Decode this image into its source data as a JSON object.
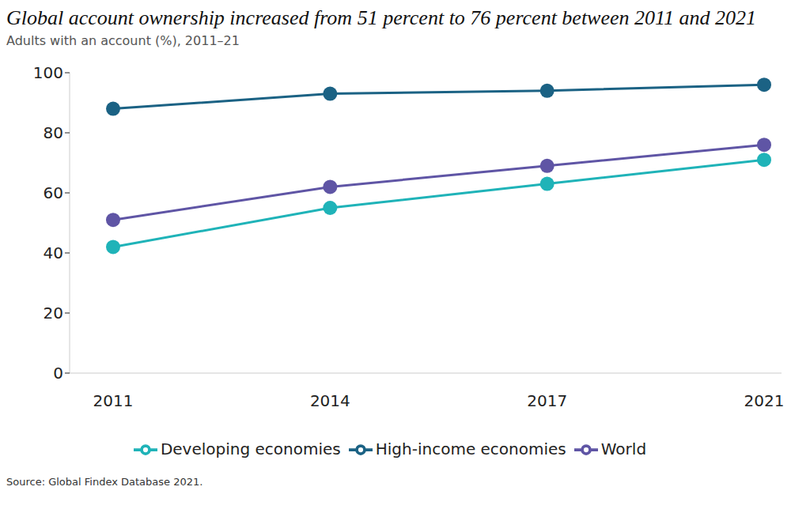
{
  "chart_data": {
    "type": "line",
    "title": "Global account ownership increased from 51 percent to 76 percent between 2011 and 2021",
    "subtitle": "Adults with an account (%), 2011–21",
    "source": "Source: Global Findex Database 2021.",
    "categories": [
      "2011",
      "2014",
      "2017",
      "2021"
    ],
    "series": [
      {
        "name": "World",
        "color": "#5f55a5",
        "values": [
          51,
          62,
          69,
          76
        ]
      },
      {
        "name": "High-income economies",
        "color": "#1b6284",
        "values": [
          88,
          93,
          94,
          96
        ]
      },
      {
        "name": "Developing economies",
        "color": "#1fb3b8",
        "values": [
          42,
          55,
          63,
          71
        ]
      }
    ],
    "ylim": [
      0,
      100
    ],
    "yticks": [
      0,
      20,
      40,
      60,
      80,
      100
    ],
    "grid": false,
    "legend": "bottom",
    "marker": "circle"
  }
}
